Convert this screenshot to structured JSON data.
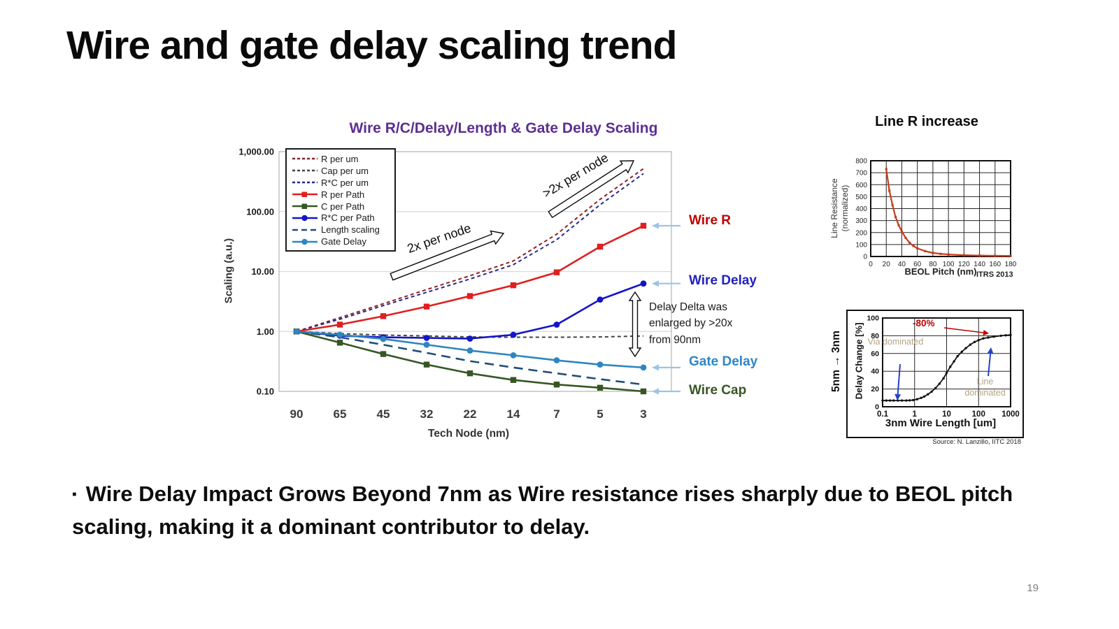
{
  "slide": {
    "title": "Wire and gate delay scaling trend",
    "bullet_marker": "▪",
    "bullet": "Wire Delay Impact Grows Beyond 7nm as Wire resistance rises sharply due to BEOL pitch scaling, making it a dominant contributor to delay.",
    "page_number": "19"
  },
  "main_chart": {
    "title_color": "#5C2E91",
    "annotations": {
      "arrow1": "2x per node",
      "arrow2": ">2x per node",
      "delay_delta": "Delay Delta was enlarged by >20x from 90nm"
    },
    "pointer_arrow_color": "#9DC3E6",
    "right_labels": [
      {
        "text": "Wire R",
        "color": "#C00000"
      },
      {
        "text": "Wire Delay",
        "color": "#2020C0"
      },
      {
        "text": "Gate Delay",
        "color": "#2E86C5"
      },
      {
        "text": "Wire Cap",
        "color": "#375623"
      }
    ]
  },
  "chart_data": [
    {
      "id": "main",
      "type": "line",
      "title": "Wire R/C/Delay/Length & Gate Delay Scaling",
      "xlabel": "Tech Node (nm)",
      "ylabel": "Scaling (a.u.)",
      "y_scale": "log",
      "ylim": [
        0.1,
        1000
      ],
      "y_tick_labels": [
        "1,000.00",
        "100.00",
        "10.00",
        "1.00",
        "0.10"
      ],
      "y_tick_values": [
        1000,
        100,
        10,
        1,
        0.1
      ],
      "categories": [
        "90",
        "65",
        "45",
        "32",
        "22",
        "14",
        "7",
        "5",
        "3"
      ],
      "legend_position": "top-left",
      "grid": "horizontal",
      "series": [
        {
          "name": "R per um",
          "color": "#8C2222",
          "style": "dashed",
          "marker": "none",
          "values": [
            1,
            1.7,
            2.9,
            5.0,
            8.5,
            15,
            42,
            160,
            520
          ]
        },
        {
          "name": "Cap per um",
          "color": "#41473A",
          "style": "dashed",
          "marker": "none",
          "values": [
            1,
            0.92,
            0.87,
            0.84,
            0.81,
            0.8,
            0.8,
            0.81,
            0.84
          ]
        },
        {
          "name": "R*C per um",
          "color": "#26268F",
          "style": "dashed",
          "marker": "none",
          "values": [
            1,
            1.6,
            2.7,
            4.5,
            7.5,
            13,
            34,
            130,
            430
          ]
        },
        {
          "name": "R per Path",
          "color": "#E01F1F",
          "style": "solid",
          "marker": "square",
          "values": [
            1,
            1.3,
            1.8,
            2.6,
            3.9,
            5.9,
            9.7,
            26,
            58
          ]
        },
        {
          "name": "C per Path",
          "color": "#375623",
          "style": "solid",
          "marker": "square",
          "values": [
            1,
            0.65,
            0.42,
            0.28,
            0.2,
            0.155,
            0.13,
            0.115,
            0.1
          ]
        },
        {
          "name": "R*C per Path",
          "color": "#1414C8",
          "style": "solid",
          "marker": "circle",
          "values": [
            1,
            0.85,
            0.8,
            0.78,
            0.76,
            0.88,
            1.3,
            3.4,
            6.3
          ]
        },
        {
          "name": "Length scaling",
          "color": "#1F4E79",
          "style": "longdash",
          "marker": "none",
          "values": [
            1,
            0.8,
            0.6,
            0.44,
            0.32,
            0.25,
            0.2,
            0.16,
            0.13
          ]
        },
        {
          "name": "Gate Delay",
          "color": "#2E86C1",
          "style": "solid",
          "marker": "circle",
          "values": [
            1,
            0.88,
            0.75,
            0.6,
            0.48,
            0.4,
            0.33,
            0.28,
            0.25
          ]
        }
      ]
    },
    {
      "id": "line_r",
      "type": "line",
      "title": "Line R increase",
      "xlabel": "BEOL Pitch (nm)",
      "ylabel": "Line Resistance (normalized)",
      "source": "ITRS 2013",
      "xlim": [
        0,
        180
      ],
      "ylim": [
        0,
        800
      ],
      "x_ticks": [
        0,
        20,
        40,
        60,
        80,
        100,
        120,
        140,
        160,
        180
      ],
      "y_ticks": [
        0,
        100,
        200,
        300,
        400,
        500,
        600,
        700,
        800
      ],
      "grid": "both",
      "series": [
        {
          "name": "Line Resistance",
          "color": "#C63D1C",
          "x": [
            20,
            24,
            28,
            32,
            36,
            40,
            45,
            50,
            55,
            60,
            70,
            80,
            90,
            100,
            120,
            140,
            160,
            180
          ],
          "y": [
            730,
            550,
            430,
            330,
            262,
            210,
            155,
            115,
            88,
            68,
            45,
            30,
            22,
            17,
            11,
            8,
            6,
            5
          ]
        }
      ]
    },
    {
      "id": "delay_change",
      "type": "line",
      "title": "",
      "xlabel": "3nm Wire Length [um]",
      "ylabel": "Delay Change [%]",
      "side_label": "5nm → 3nm",
      "x_scale": "log",
      "xlim": [
        0.1,
        1000
      ],
      "ylim": [
        0,
        100
      ],
      "x_ticks": [
        "0.1",
        "1",
        "10",
        "100",
        "1000"
      ],
      "y_ticks": [
        0,
        20,
        40,
        60,
        80,
        100
      ],
      "grid": "both",
      "annotations": {
        "delta": "-80%",
        "via": "Via dominated",
        "line": "Line dominated"
      },
      "source": "Source: N. Lanzillo, IITC 2018",
      "series": [
        {
          "name": "Delay change 5nm to 3nm",
          "color": "#111111",
          "x": [
            0.1,
            0.13,
            0.17,
            0.22,
            0.3,
            0.4,
            0.55,
            0.7,
            0.9,
            1.2,
            1.6,
            2,
            2.6,
            3.4,
            4.5,
            6,
            8,
            10,
            13,
            17,
            22,
            30,
            40,
            55,
            75,
            100,
            140,
            200,
            300,
            500,
            700,
            1000
          ],
          "y": [
            7,
            7,
            7,
            7,
            7,
            7,
            7,
            7.2,
            7.5,
            8.5,
            10,
            11.5,
            14,
            17,
            21,
            26,
            32,
            38,
            45,
            51,
            57,
            62,
            66,
            70,
            73,
            75,
            77,
            78,
            79,
            80,
            80.5,
            81
          ]
        }
      ]
    }
  ]
}
